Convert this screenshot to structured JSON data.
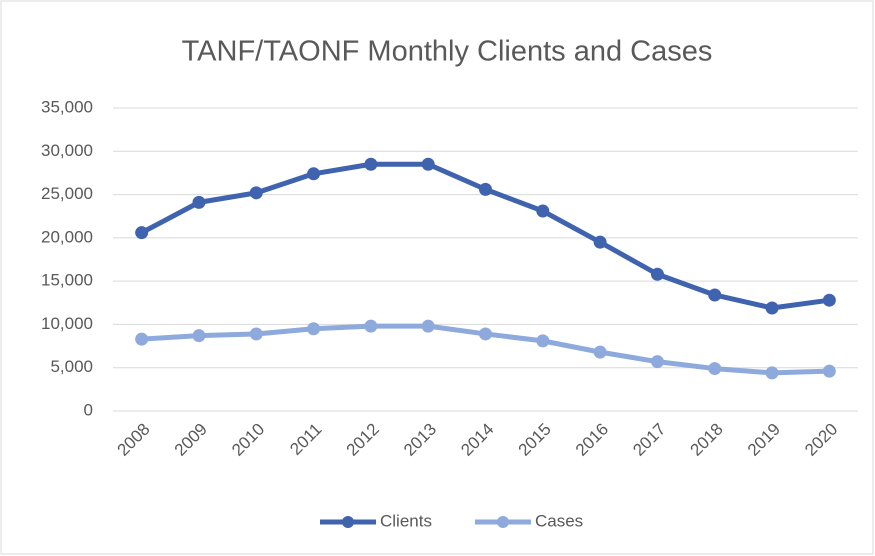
{
  "chart_data": {
    "type": "line",
    "title": "TANF/TAONF Monthly Clients and Cases",
    "categories": [
      "2008",
      "2009",
      "2010",
      "2011",
      "2012",
      "2013",
      "2014",
      "2015",
      "2016",
      "2017",
      "2018",
      "2019",
      "2020"
    ],
    "series": [
      {
        "name": "Clients",
        "color": "#3f63ae",
        "values": [
          20600,
          24100,
          25200,
          27400,
          28500,
          28500,
          25600,
          23100,
          19500,
          15800,
          13400,
          11900,
          12800
        ]
      },
      {
        "name": "Cases",
        "color": "#8eaadc",
        "values": [
          8300,
          8700,
          8900,
          9500,
          9800,
          9800,
          8900,
          8100,
          6800,
          5700,
          4900,
          4400,
          4600
        ]
      }
    ],
    "ylim": [
      0,
      35000
    ],
    "yticks": [
      0,
      {
        "value": 5000,
        "label": "5,000"
      },
      {
        "value": 10000,
        "label": "10,000"
      },
      {
        "value": 15000,
        "label": "15,000"
      },
      {
        "value": 20000,
        "label": "20,000"
      },
      {
        "value": 25000,
        "label": "25,000"
      },
      {
        "value": 30000,
        "label": "30,000"
      },
      {
        "value": 35000,
        "label": "35,000"
      }
    ],
    "grid": true,
    "legend": "bottom"
  }
}
